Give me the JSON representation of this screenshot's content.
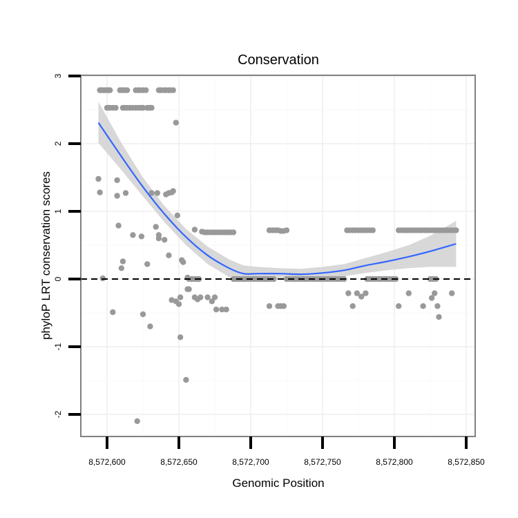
{
  "chart_data": {
    "type": "scatter",
    "title": "Conservation",
    "xlabel": "Genomic Position",
    "ylabel": "phyloP LRT conservation scores",
    "xlim": [
      8572582,
      8572857
    ],
    "ylim": [
      -2.3,
      3.0
    ],
    "x_ticks": [
      8572600,
      8572650,
      8572700,
      8572750,
      8572800,
      8572850
    ],
    "x_tick_labels": [
      "8,572,600",
      "8,572,650",
      "8,572,700",
      "8,572,750",
      "8,572,800",
      "8,572,850"
    ],
    "y_ticks": [
      -2,
      -1,
      0,
      1,
      2,
      3
    ],
    "y_tick_labels": [
      "-2",
      "-1",
      "0",
      "1",
      "2",
      "3"
    ],
    "grid": true,
    "reference_line": {
      "y": 0,
      "style": "dashed",
      "color": "#000000"
    },
    "colors": {
      "points": "#999999",
      "smooth": "#3366ff",
      "ribbon": "#d4d4d4"
    },
    "points": [
      [
        8572595,
        2.79
      ],
      [
        8572596,
        2.79
      ],
      [
        8572597,
        2.79
      ],
      [
        8572598,
        2.79
      ],
      [
        8572599,
        2.79
      ],
      [
        8572600,
        2.79
      ],
      [
        8572601,
        2.79
      ],
      [
        8572602,
        2.79
      ],
      [
        8572609,
        2.79
      ],
      [
        8572610,
        2.79
      ],
      [
        8572611,
        2.79
      ],
      [
        8572612,
        2.79
      ],
      [
        8572614,
        2.79
      ],
      [
        8572620,
        2.79
      ],
      [
        8572622,
        2.79
      ],
      [
        8572623,
        2.79
      ],
      [
        8572625,
        2.79
      ],
      [
        8572627,
        2.79
      ],
      [
        8572636,
        2.79
      ],
      [
        8572637,
        2.79
      ],
      [
        8572638,
        2.79
      ],
      [
        8572640,
        2.79
      ],
      [
        8572641,
        2.79
      ],
      [
        8572643,
        2.79
      ],
      [
        8572644,
        2.79
      ],
      [
        8572646,
        2.79
      ],
      [
        8572600,
        2.53
      ],
      [
        8572601,
        2.53
      ],
      [
        8572602,
        2.53
      ],
      [
        8572604,
        2.53
      ],
      [
        8572606,
        2.53
      ],
      [
        8572611,
        2.53
      ],
      [
        8572612,
        2.53
      ],
      [
        8572614,
        2.53
      ],
      [
        8572616,
        2.53
      ],
      [
        8572618,
        2.53
      ],
      [
        8572620,
        2.53
      ],
      [
        8572622,
        2.53
      ],
      [
        8572624,
        2.53
      ],
      [
        8572625,
        2.53
      ],
      [
        8572628,
        2.53
      ],
      [
        8572629,
        2.53
      ],
      [
        8572630,
        2.53
      ],
      [
        8572631,
        2.53
      ],
      [
        8572648,
        2.31
      ],
      [
        8572594,
        1.48
      ],
      [
        8572607,
        1.46
      ],
      [
        8572595,
        1.28
      ],
      [
        8572607,
        1.23
      ],
      [
        8572613,
        1.27
      ],
      [
        8572631,
        1.27
      ],
      [
        8572635,
        1.27
      ],
      [
        8572641,
        1.25
      ],
      [
        8572643,
        1.27
      ],
      [
        8572645,
        1.28
      ],
      [
        8572646,
        1.3
      ],
      [
        8572649,
        0.94
      ],
      [
        8572608,
        0.79
      ],
      [
        8572618,
        0.65
      ],
      [
        8572624,
        0.63
      ],
      [
        8572634,
        0.77
      ],
      [
        8572636,
        0.6
      ],
      [
        8572640,
        0.58
      ],
      [
        8572636,
        0.65
      ],
      [
        8572661,
        0.73
      ],
      [
        8572666,
        0.7
      ],
      [
        8572668,
        0.69
      ],
      [
        8572670,
        0.69
      ],
      [
        8572672,
        0.69
      ],
      [
        8572674,
        0.69
      ],
      [
        8572676,
        0.69
      ],
      [
        8572678,
        0.69
      ],
      [
        8572680,
        0.69
      ],
      [
        8572682,
        0.69
      ],
      [
        8572684,
        0.69
      ],
      [
        8572686,
        0.69
      ],
      [
        8572688,
        0.69
      ],
      [
        8572713,
        0.72
      ],
      [
        8572715,
        0.72
      ],
      [
        8572717,
        0.72
      ],
      [
        8572719,
        0.72
      ],
      [
        8572721,
        0.71
      ],
      [
        8572723,
        0.71
      ],
      [
        8572725,
        0.72
      ],
      [
        8572767,
        0.72
      ],
      [
        8572769,
        0.72
      ],
      [
        8572771,
        0.72
      ],
      [
        8572773,
        0.72
      ],
      [
        8572775,
        0.72
      ],
      [
        8572777,
        0.72
      ],
      [
        8572779,
        0.72
      ],
      [
        8572781,
        0.72
      ],
      [
        8572783,
        0.72
      ],
      [
        8572785,
        0.72
      ],
      [
        8572803,
        0.72
      ],
      [
        8572805,
        0.72
      ],
      [
        8572807,
        0.72
      ],
      [
        8572809,
        0.72
      ],
      [
        8572811,
        0.72
      ],
      [
        8572813,
        0.72
      ],
      [
        8572815,
        0.72
      ],
      [
        8572817,
        0.72
      ],
      [
        8572819,
        0.72
      ],
      [
        8572821,
        0.72
      ],
      [
        8572823,
        0.72
      ],
      [
        8572825,
        0.72
      ],
      [
        8572827,
        0.72
      ],
      [
        8572829,
        0.72
      ],
      [
        8572831,
        0.72
      ],
      [
        8572833,
        0.72
      ],
      [
        8572835,
        0.72
      ],
      [
        8572837,
        0.72
      ],
      [
        8572839,
        0.72
      ],
      [
        8572841,
        0.72
      ],
      [
        8572843,
        0.72
      ],
      [
        8572611,
        0.26
      ],
      [
        8572610,
        0.16
      ],
      [
        8572628,
        0.22
      ],
      [
        8572643,
        0.35
      ],
      [
        8572652,
        0.28
      ],
      [
        8572653,
        0.25
      ],
      [
        8572597,
        0.01
      ],
      [
        8572656,
        0.02
      ],
      [
        8572657,
        0.0
      ],
      [
        8572659,
        0.0
      ],
      [
        8572661,
        0.0
      ],
      [
        8572663,
        0.0
      ],
      [
        8572664,
        0.0
      ],
      [
        8572688,
        0.0
      ],
      [
        8572690,
        0.0
      ],
      [
        8572692,
        0.0
      ],
      [
        8572694,
        0.0
      ],
      [
        8572696,
        0.0
      ],
      [
        8572698,
        0.0
      ],
      [
        8572700,
        0.0
      ],
      [
        8572702,
        0.0
      ],
      [
        8572704,
        0.0
      ],
      [
        8572706,
        0.0
      ],
      [
        8572708,
        0.0
      ],
      [
        8572710,
        0.0
      ],
      [
        8572712,
        0.0
      ],
      [
        8572714,
        0.0
      ],
      [
        8572716,
        0.0
      ],
      [
        8572725,
        0.0
      ],
      [
        8572727,
        0.0
      ],
      [
        8572729,
        0.0
      ],
      [
        8572731,
        0.0
      ],
      [
        8572733,
        0.0
      ],
      [
        8572735,
        0.0
      ],
      [
        8572737,
        0.0
      ],
      [
        8572739,
        0.0
      ],
      [
        8572741,
        0.0
      ],
      [
        8572743,
        0.0
      ],
      [
        8572745,
        0.0
      ],
      [
        8572747,
        0.0
      ],
      [
        8572749,
        0.0
      ],
      [
        8572751,
        0.0
      ],
      [
        8572753,
        0.0
      ],
      [
        8572755,
        0.0
      ],
      [
        8572757,
        0.0
      ],
      [
        8572759,
        0.0
      ],
      [
        8572761,
        0.0
      ],
      [
        8572763,
        0.0
      ],
      [
        8572765,
        0.0
      ],
      [
        8572781,
        0.0
      ],
      [
        8572783,
        0.0
      ],
      [
        8572785,
        0.0
      ],
      [
        8572787,
        0.0
      ],
      [
        8572789,
        0.0
      ],
      [
        8572791,
        0.0
      ],
      [
        8572793,
        0.0
      ],
      [
        8572795,
        0.0
      ],
      [
        8572797,
        0.0
      ],
      [
        8572799,
        0.0
      ],
      [
        8572801,
        0.0
      ],
      [
        8572825,
        0.0
      ],
      [
        8572827,
        0.0
      ],
      [
        8572829,
        0.0
      ],
      [
        8572656,
        -0.15
      ],
      [
        8572657,
        -0.15
      ],
      [
        8572651,
        -0.27
      ],
      [
        8572648,
        -0.33
      ],
      [
        8572645,
        -0.31
      ],
      [
        8572650,
        -0.37
      ],
      [
        8572661,
        -0.27
      ],
      [
        8572663,
        -0.3
      ],
      [
        8572665,
        -0.27
      ],
      [
        8572670,
        -0.27
      ],
      [
        8572673,
        -0.33
      ],
      [
        8572675,
        -0.27
      ],
      [
        8572676,
        -0.45
      ],
      [
        8572680,
        -0.45
      ],
      [
        8572683,
        -0.45
      ],
      [
        8572713,
        -0.4
      ],
      [
        8572719,
        -0.4
      ],
      [
        8572721,
        -0.4
      ],
      [
        8572723,
        -0.4
      ],
      [
        8572768,
        -0.21
      ],
      [
        8572774,
        -0.21
      ],
      [
        8572777,
        -0.26
      ],
      [
        8572780,
        -0.21
      ],
      [
        8572771,
        -0.4
      ],
      [
        8572803,
        -0.4
      ],
      [
        8572810,
        -0.21
      ],
      [
        8572820,
        -0.4
      ],
      [
        8572826,
        -0.28
      ],
      [
        8572828,
        -0.21
      ],
      [
        8572830,
        -0.4
      ],
      [
        8572840,
        -0.21
      ],
      [
        8572831,
        -0.56
      ],
      [
        8572604,
        -0.49
      ],
      [
        8572625,
        -0.52
      ],
      [
        8572630,
        -0.7
      ],
      [
        8572651,
        -0.86
      ],
      [
        8572655,
        -1.49
      ],
      [
        8572621,
        -2.1
      ]
    ],
    "smooth": {
      "method": "loess",
      "x": [
        8572594,
        8572610,
        8572625,
        8572640,
        8572655,
        8572670,
        8572685,
        8572695,
        8572705,
        8572720,
        8572735,
        8572750,
        8572765,
        8572780,
        8572795,
        8572810,
        8572825,
        8572843
      ],
      "y": [
        2.31,
        1.81,
        1.36,
        0.96,
        0.62,
        0.35,
        0.16,
        0.08,
        0.08,
        0.08,
        0.07,
        0.09,
        0.13,
        0.2,
        0.26,
        0.33,
        0.41,
        0.52
      ],
      "lower": [
        2.01,
        1.61,
        1.22,
        0.84,
        0.5,
        0.22,
        0.03,
        -0.04,
        -0.02,
        0.0,
        -0.01,
        0.0,
        0.04,
        0.09,
        0.13,
        0.16,
        0.18,
        0.18
      ],
      "upper": [
        2.62,
        2.01,
        1.5,
        1.08,
        0.74,
        0.48,
        0.29,
        0.2,
        0.18,
        0.16,
        0.15,
        0.18,
        0.22,
        0.31,
        0.4,
        0.5,
        0.64,
        0.86
      ]
    }
  }
}
